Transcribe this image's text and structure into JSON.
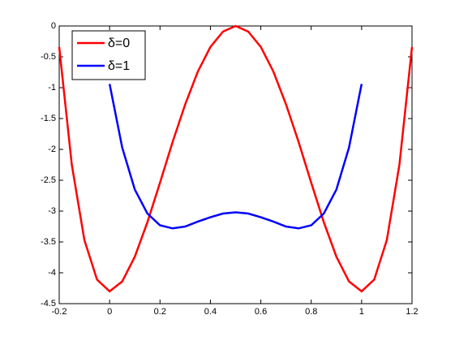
{
  "chart_data": {
    "type": "line",
    "series": [
      {
        "name": "δ=0",
        "color": "#ff0000",
        "x": [
          -0.2,
          -0.15,
          -0.1,
          -0.05,
          0,
          0.05,
          0.1,
          0.15,
          0.2,
          0.25,
          0.3,
          0.35,
          0.4,
          0.45,
          0.5,
          0.55,
          0.6,
          0.65,
          0.7,
          0.75,
          0.8,
          0.85,
          0.9,
          0.95,
          1,
          1.05,
          1.1,
          1.15,
          1.2
        ],
        "values": [
          -0.34,
          -2.25,
          -3.47,
          -4.11,
          -4.3,
          -4.14,
          -3.74,
          -3.18,
          -2.54,
          -1.88,
          -1.27,
          -0.74,
          -0.34,
          -0.09,
          0,
          -0.09,
          -0.34,
          -0.74,
          -1.27,
          -1.88,
          -2.54,
          -3.18,
          -3.74,
          -4.14,
          -4.3,
          -4.11,
          -3.47,
          -2.25,
          -0.34
        ]
      },
      {
        "name": "δ=1",
        "color": "#0000ff",
        "x": [
          0,
          0.05,
          0.1,
          0.15,
          0.2,
          0.25,
          0.3,
          0.35,
          0.4,
          0.45,
          0.5,
          0.55,
          0.6,
          0.65,
          0.7,
          0.75,
          0.8,
          0.85,
          0.9,
          0.95,
          1
        ],
        "values": [
          -0.94,
          -1.97,
          -2.65,
          -3.04,
          -3.23,
          -3.28,
          -3.25,
          -3.17,
          -3.1,
          -3.04,
          -3.02,
          -3.04,
          -3.1,
          -3.17,
          -3.25,
          -3.28,
          -3.23,
          -3.04,
          -2.65,
          -1.97,
          -0.94
        ]
      }
    ],
    "xlim": [
      -0.2,
      1.2
    ],
    "xticks": [
      -0.2,
      0,
      0.2,
      0.4,
      0.6,
      0.8,
      1,
      1.2
    ],
    "ylim": [
      -4.5,
      0
    ],
    "yticks": [
      -4.5,
      -4,
      -3.5,
      -3,
      -2.5,
      -2,
      -1.5,
      -1,
      -0.5,
      0
    ],
    "legend": "upper left"
  }
}
